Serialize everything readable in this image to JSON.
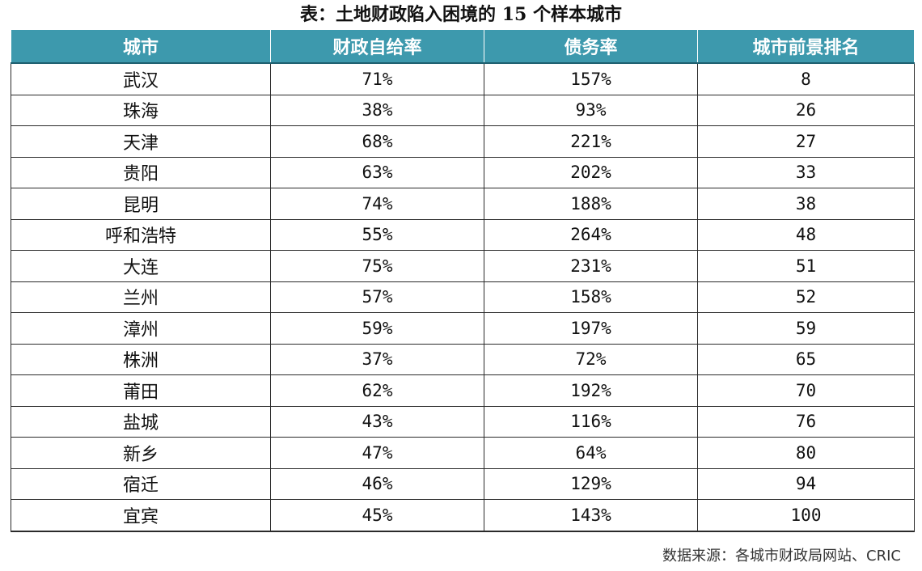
{
  "title": "表：土地财政陷入困境的 15 个样本城市",
  "table": {
    "headers": [
      "城市",
      "财政自给率",
      "债务率",
      "城市前景排名"
    ],
    "rows": [
      [
        "武汉",
        "71%",
        "157%",
        "8"
      ],
      [
        "珠海",
        "38%",
        "93%",
        "26"
      ],
      [
        "天津",
        "68%",
        "221%",
        "27"
      ],
      [
        "贵阳",
        "63%",
        "202%",
        "33"
      ],
      [
        "昆明",
        "74%",
        "188%",
        "38"
      ],
      [
        "呼和浩特",
        "55%",
        "264%",
        "48"
      ],
      [
        "大连",
        "75%",
        "231%",
        "51"
      ],
      [
        "兰州",
        "57%",
        "158%",
        "52"
      ],
      [
        "漳州",
        "59%",
        "197%",
        "59"
      ],
      [
        "株洲",
        "37%",
        "72%",
        "65"
      ],
      [
        "莆田",
        "62%",
        "192%",
        "70"
      ],
      [
        "盐城",
        "43%",
        "116%",
        "76"
      ],
      [
        "新乡",
        "47%",
        "64%",
        "80"
      ],
      [
        "宿迁",
        "46%",
        "129%",
        "94"
      ],
      [
        "宜宾",
        "45%",
        "143%",
        "100"
      ]
    ]
  },
  "source": "数据来源：各城市财政局网站、CRIC",
  "colors": {
    "header_bg": "#3d99ad",
    "header_text": "#ffffff",
    "grid": "#2a2a2a"
  }
}
